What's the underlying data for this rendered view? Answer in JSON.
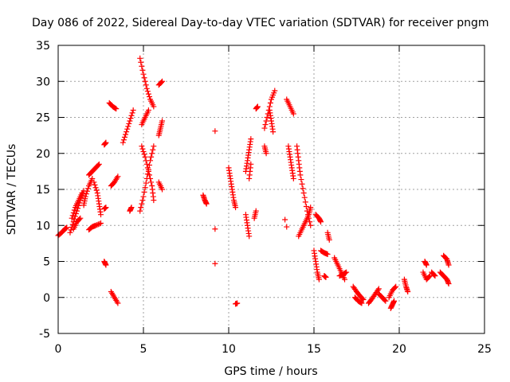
{
  "chart_data": {
    "type": "scatter",
    "title": "Day 086 of 2022, Sidereal Day-to-day VTEC variation (SDTVAR) for receiver pngm",
    "xlabel": "GPS time / hours",
    "ylabel": "SDTVAR / TECUs",
    "xlim": [
      0,
      25
    ],
    "ylim": [
      -5,
      35
    ],
    "xticks": [
      0,
      5,
      10,
      15,
      20,
      25
    ],
    "yticks": [
      -5,
      0,
      5,
      10,
      15,
      20,
      25,
      30,
      35
    ],
    "grid": true,
    "marker": "plus",
    "color": "#ff0000",
    "series": [
      {
        "name": "SDTVAR",
        "segments": [
          [
            [
              0.0,
              8.6
            ],
            [
              0.2,
              9.0
            ],
            [
              0.4,
              9.5
            ],
            [
              0.5,
              9.7
            ]
          ],
          [
            [
              0.7,
              9.0
            ],
            [
              0.9,
              10.5
            ],
            [
              1.1,
              12.0
            ],
            [
              1.3,
              13.5
            ],
            [
              1.5,
              14.8
            ]
          ],
          [
            [
              0.8,
              11.0
            ],
            [
              1.0,
              12.5
            ],
            [
              1.2,
              13.5
            ],
            [
              1.4,
              14.5
            ]
          ],
          [
            [
              0.9,
              9.5
            ],
            [
              1.1,
              10.5
            ],
            [
              1.3,
              11.0
            ]
          ],
          [
            [
              1.5,
              12.8
            ],
            [
              1.6,
              14.0
            ],
            [
              1.8,
              15.5
            ],
            [
              2.0,
              16.5
            ]
          ],
          [
            [
              1.8,
              9.4
            ],
            [
              2.0,
              9.8
            ],
            [
              2.2,
              10.0
            ],
            [
              2.5,
              10.3
            ]
          ],
          [
            [
              1.8,
              17.0
            ],
            [
              2.0,
              17.5
            ],
            [
              2.2,
              18.0
            ],
            [
              2.4,
              18.5
            ]
          ],
          [
            [
              2.1,
              16.0
            ],
            [
              2.3,
              14.5
            ],
            [
              2.4,
              13.0
            ],
            [
              2.5,
              11.5
            ]
          ],
          [
            [
              2.7,
              12.3
            ],
            [
              2.8,
              12.5
            ]
          ],
          [
            [
              2.7,
              21.2
            ],
            [
              2.8,
              21.5
            ]
          ],
          [
            [
              2.7,
              5.0
            ],
            [
              2.8,
              4.5
            ]
          ],
          [
            [
              3.0,
              27.0
            ],
            [
              3.2,
              26.5
            ],
            [
              3.4,
              26.2
            ]
          ],
          [
            [
              3.1,
              15.5
            ],
            [
              3.3,
              16.0
            ],
            [
              3.5,
              16.8
            ]
          ],
          [
            [
              3.1,
              0.8
            ],
            [
              3.3,
              0.0
            ],
            [
              3.5,
              -0.8
            ]
          ],
          [
            [
              3.8,
              21.5
            ],
            [
              4.0,
              23.0
            ],
            [
              4.2,
              24.5
            ],
            [
              4.4,
              26.0
            ]
          ],
          [
            [
              4.2,
              12.0
            ],
            [
              4.3,
              12.5
            ]
          ],
          [
            [
              4.8,
              33.2
            ],
            [
              5.0,
              31.0
            ],
            [
              5.2,
              29.0
            ],
            [
              5.4,
              27.5
            ],
            [
              5.6,
              26.5
            ]
          ],
          [
            [
              4.8,
              12.0
            ],
            [
              5.0,
              14.0
            ],
            [
              5.2,
              16.5
            ],
            [
              5.4,
              19.0
            ],
            [
              5.6,
              21.0
            ]
          ],
          [
            [
              4.9,
              21.0
            ],
            [
              5.1,
              19.5
            ],
            [
              5.3,
              17.5
            ],
            [
              5.5,
              15.5
            ],
            [
              5.6,
              13.5
            ]
          ],
          [
            [
              4.9,
              24.0
            ],
            [
              5.1,
              25.0
            ],
            [
              5.3,
              26.0
            ]
          ],
          [
            [
              5.9,
              29.5
            ],
            [
              6.1,
              30.0
            ]
          ],
          [
            [
              5.9,
              22.5
            ],
            [
              6.0,
              23.5
            ],
            [
              6.1,
              24.5
            ]
          ],
          [
            [
              5.9,
              16.0
            ],
            [
              6.1,
              15.0
            ]
          ],
          [
            [
              8.5,
              14.2
            ],
            [
              8.6,
              13.5
            ],
            [
              8.7,
              13.0
            ]
          ],
          [
            [
              9.2,
              23.1
            ]
          ],
          [
            [
              9.2,
              9.5
            ]
          ],
          [
            [
              9.2,
              4.7
            ]
          ],
          [
            [
              10.0,
              18.0
            ],
            [
              10.1,
              16.5
            ],
            [
              10.2,
              15.0
            ],
            [
              10.3,
              13.5
            ],
            [
              10.4,
              12.5
            ]
          ],
          [
            [
              10.4,
              -0.9
            ],
            [
              10.5,
              -0.8
            ]
          ],
          [
            [
              11.0,
              11.5
            ],
            [
              11.1,
              10.0
            ],
            [
              11.2,
              8.5
            ]
          ],
          [
            [
              11.0,
              17.5
            ],
            [
              11.1,
              19.0
            ],
            [
              11.2,
              20.5
            ],
            [
              11.3,
              22.0
            ]
          ],
          [
            [
              11.2,
              16.5
            ],
            [
              11.3,
              18.5
            ]
          ],
          [
            [
              11.5,
              11.0
            ],
            [
              11.6,
              12.0
            ]
          ],
          [
            [
              11.6,
              26.2
            ],
            [
              11.7,
              26.5
            ]
          ],
          [
            [
              12.1,
              21.0
            ],
            [
              12.2,
              20.0
            ]
          ],
          [
            [
              12.1,
              23.5
            ],
            [
              12.3,
              25.5
            ],
            [
              12.5,
              27.5
            ],
            [
              12.7,
              28.7
            ]
          ],
          [
            [
              12.4,
              26.0
            ],
            [
              12.5,
              24.5
            ],
            [
              12.6,
              23.0
            ]
          ],
          [
            [
              13.3,
              10.8
            ]
          ],
          [
            [
              13.4,
              9.8
            ]
          ],
          [
            [
              13.4,
              27.5
            ],
            [
              13.6,
              26.5
            ],
            [
              13.8,
              25.5
            ]
          ],
          [
            [
              13.5,
              21.0
            ],
            [
              13.6,
              19.5
            ],
            [
              13.7,
              18.0
            ],
            [
              13.8,
              16.5
            ]
          ],
          [
            [
              14.0,
              21.0
            ],
            [
              14.1,
              19.0
            ],
            [
              14.2,
              17.0
            ],
            [
              14.4,
              14.5
            ],
            [
              14.6,
              12.0
            ],
            [
              14.8,
              10.0
            ]
          ],
          [
            [
              14.1,
              8.5
            ],
            [
              14.3,
              9.5
            ],
            [
              14.5,
              10.5
            ],
            [
              14.7,
              11.5
            ],
            [
              14.8,
              12.5
            ]
          ],
          [
            [
              15.0,
              6.5
            ],
            [
              15.1,
              5.0
            ],
            [
              15.2,
              3.5
            ],
            [
              15.3,
              2.5
            ]
          ],
          [
            [
              15.1,
              11.5
            ],
            [
              15.3,
              11.0
            ],
            [
              15.4,
              10.5
            ]
          ],
          [
            [
              15.4,
              6.5
            ],
            [
              15.6,
              6.2
            ],
            [
              15.8,
              6.0
            ]
          ],
          [
            [
              15.6,
              3.0
            ],
            [
              15.7,
              2.8
            ]
          ],
          [
            [
              15.8,
              9.0
            ],
            [
              15.9,
              8.0
            ]
          ],
          [
            [
              16.2,
              5.5
            ],
            [
              16.4,
              4.5
            ],
            [
              16.6,
              3.5
            ],
            [
              16.8,
              2.5
            ]
          ],
          [
            [
              16.5,
              3.0
            ],
            [
              16.7,
              3.2
            ],
            [
              16.9,
              3.5
            ]
          ],
          [
            [
              17.3,
              1.5
            ],
            [
              17.5,
              0.8
            ],
            [
              17.7,
              0.2
            ],
            [
              17.9,
              -0.3
            ]
          ],
          [
            [
              17.4,
              0.0
            ],
            [
              17.6,
              -0.5
            ],
            [
              17.8,
              -0.8
            ]
          ],
          [
            [
              18.2,
              -0.8
            ],
            [
              18.4,
              -0.2
            ],
            [
              18.6,
              0.5
            ],
            [
              18.8,
              1.2
            ]
          ],
          [
            [
              18.8,
              0.5
            ],
            [
              19.0,
              0.0
            ],
            [
              19.2,
              -0.5
            ]
          ],
          [
            [
              19.4,
              0.0
            ],
            [
              19.6,
              1.0
            ],
            [
              19.8,
              1.5
            ]
          ],
          [
            [
              19.5,
              -1.5
            ],
            [
              19.6,
              -1.0
            ],
            [
              19.7,
              -0.5
            ]
          ],
          [
            [
              20.3,
              2.5
            ],
            [
              20.4,
              1.5
            ],
            [
              20.5,
              0.8
            ]
          ],
          [
            [
              21.4,
              3.5
            ],
            [
              21.6,
              2.5
            ],
            [
              21.8,
              3.0
            ]
          ],
          [
            [
              21.5,
              5.0
            ],
            [
              21.6,
              4.5
            ]
          ],
          [
            [
              21.9,
              3.5
            ],
            [
              22.1,
              3.0
            ]
          ],
          [
            [
              22.4,
              3.5
            ],
            [
              22.6,
              3.0
            ],
            [
              22.8,
              2.5
            ],
            [
              22.9,
              1.9
            ]
          ],
          [
            [
              22.6,
              5.8
            ],
            [
              22.8,
              5.3
            ],
            [
              22.9,
              4.5
            ]
          ]
        ]
      }
    ]
  }
}
